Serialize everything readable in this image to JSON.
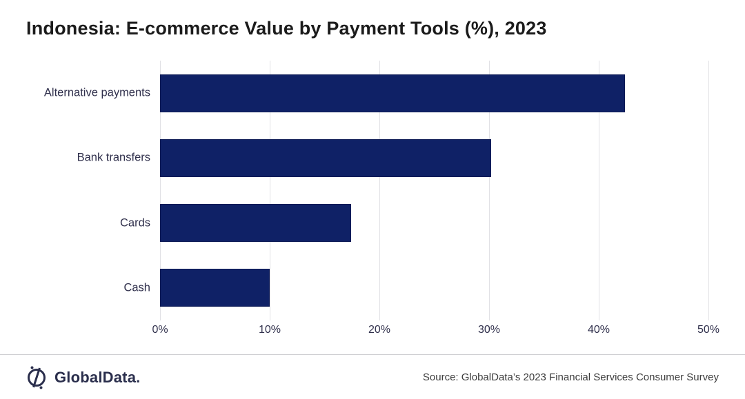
{
  "title": "Indonesia: E-commerce Value by Payment Tools (%), 2023",
  "chart_data": {
    "type": "bar",
    "orientation": "horizontal",
    "title": "Indonesia: E-commerce Value by Payment Tools (%), 2023",
    "categories": [
      "Alternative payments",
      "Bank transfers",
      "Cards",
      "Cash"
    ],
    "values": [
      42.4,
      30.2,
      17.4,
      10.0
    ],
    "xlabel": "",
    "ylabel": "",
    "xlim": [
      0,
      50
    ],
    "x_tick_values": [
      0,
      10,
      20,
      30,
      40,
      50
    ],
    "x_tick_labels": [
      "0%",
      "10%",
      "20%",
      "30%",
      "40%",
      "50%"
    ],
    "grid": true,
    "legend": false,
    "bar_color": "#0f2166",
    "bar_border_color": "#0d1a55",
    "gridline_color": "#e1e1e5",
    "label_color": "#30304c"
  },
  "footer": {
    "logo_text": "GlobalData.",
    "source": "Source: GlobalData’s 2023 Financial Services Consumer Survey"
  }
}
